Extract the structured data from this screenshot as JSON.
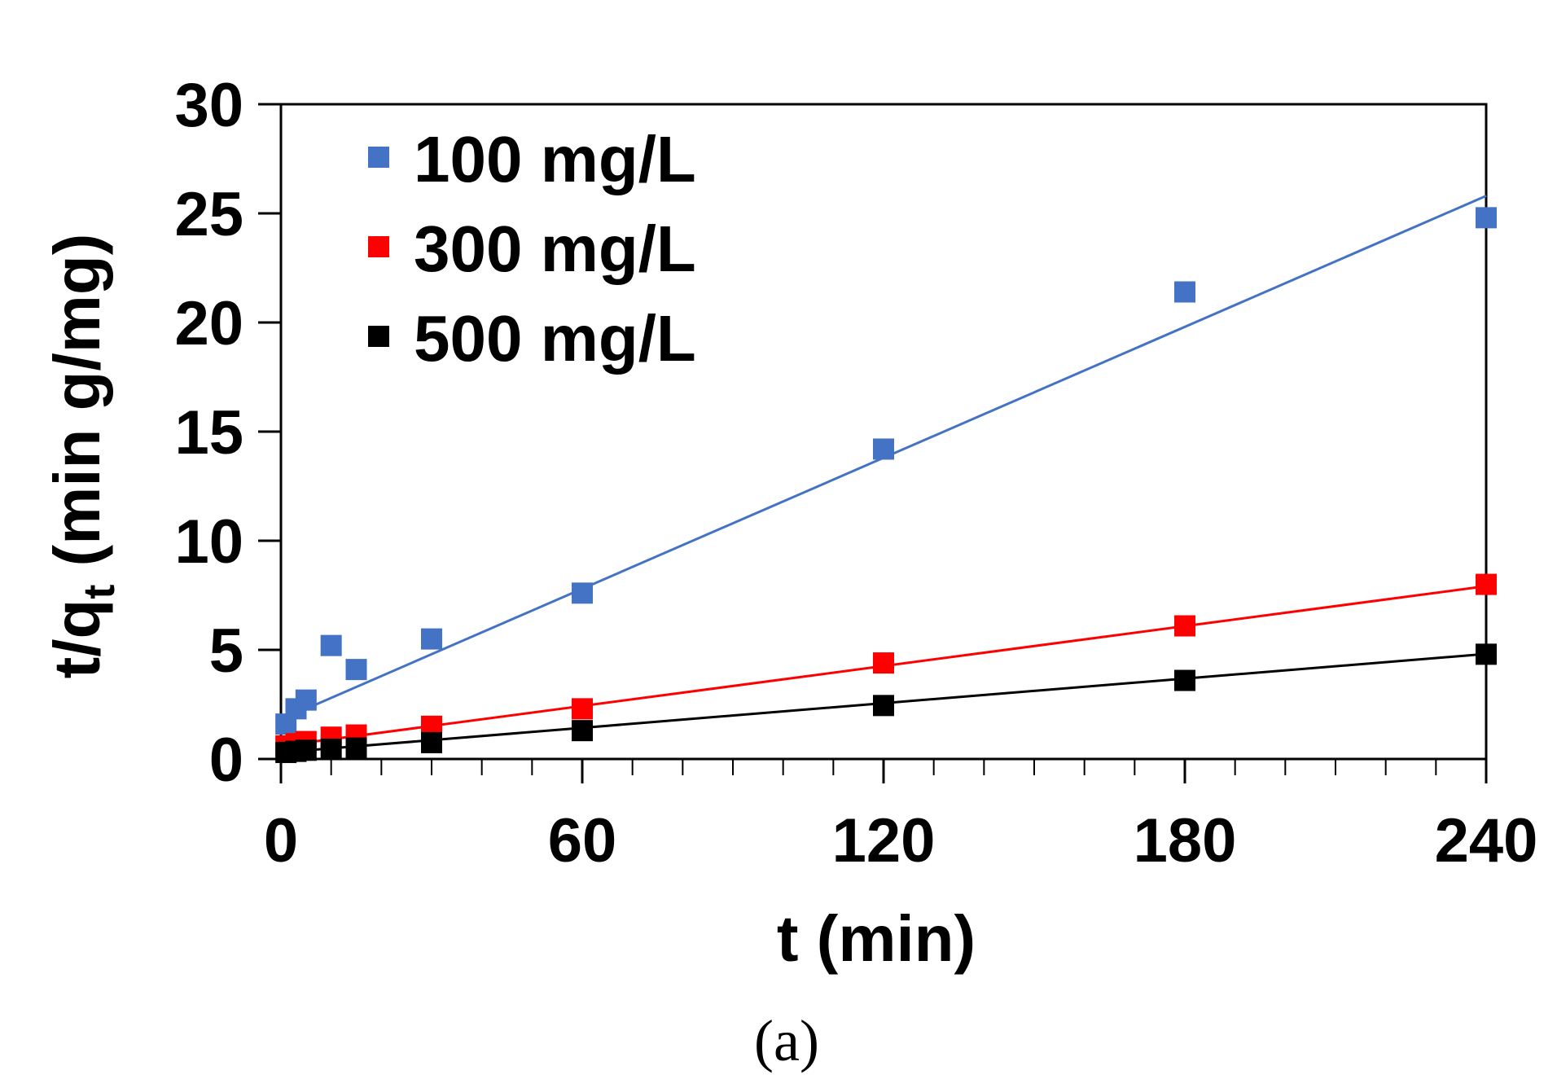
{
  "chart_data": {
    "type": "scatter",
    "xlabel": "t (min)",
    "ylabel_main": "t/q",
    "ylabel_sub": "t",
    "ylabel_rest": " (min g/mg)",
    "caption": "(a)",
    "xlim": [
      0,
      240
    ],
    "ylim": [
      0,
      30
    ],
    "x_ticks": [
      0,
      60,
      120,
      180,
      240
    ],
    "y_ticks": [
      0,
      5,
      10,
      15,
      20,
      25,
      30
    ],
    "x_minor_step": 10,
    "legend_position": "top-left",
    "series": [
      {
        "name": "100 mg/L",
        "color": "#4472c4",
        "x": [
          1,
          3,
          5,
          10,
          15,
          30,
          60,
          120,
          180,
          240
        ],
        "y": [
          1.6,
          2.3,
          2.7,
          5.2,
          4.1,
          5.5,
          7.6,
          14.2,
          21.4,
          24.8
        ],
        "fit": {
          "slope": 0.1,
          "intercept": 1.8
        }
      },
      {
        "name": "300 mg/L",
        "color": "#ff0000",
        "x": [
          1,
          3,
          5,
          10,
          15,
          30,
          60,
          120,
          180,
          240
        ],
        "y": [
          0.6,
          0.7,
          0.8,
          1.0,
          1.1,
          1.5,
          2.3,
          4.4,
          6.1,
          8.0
        ],
        "fit": {
          "slope": 0.0305,
          "intercept": 0.6
        }
      },
      {
        "name": "500 mg/L",
        "color": "#000000",
        "x": [
          1,
          3,
          5,
          10,
          15,
          30,
          60,
          120,
          180,
          240
        ],
        "y": [
          0.3,
          0.35,
          0.4,
          0.45,
          0.5,
          0.75,
          1.3,
          2.45,
          3.6,
          4.8
        ],
        "fit": {
          "slope": 0.0188,
          "intercept": 0.3
        }
      }
    ]
  }
}
